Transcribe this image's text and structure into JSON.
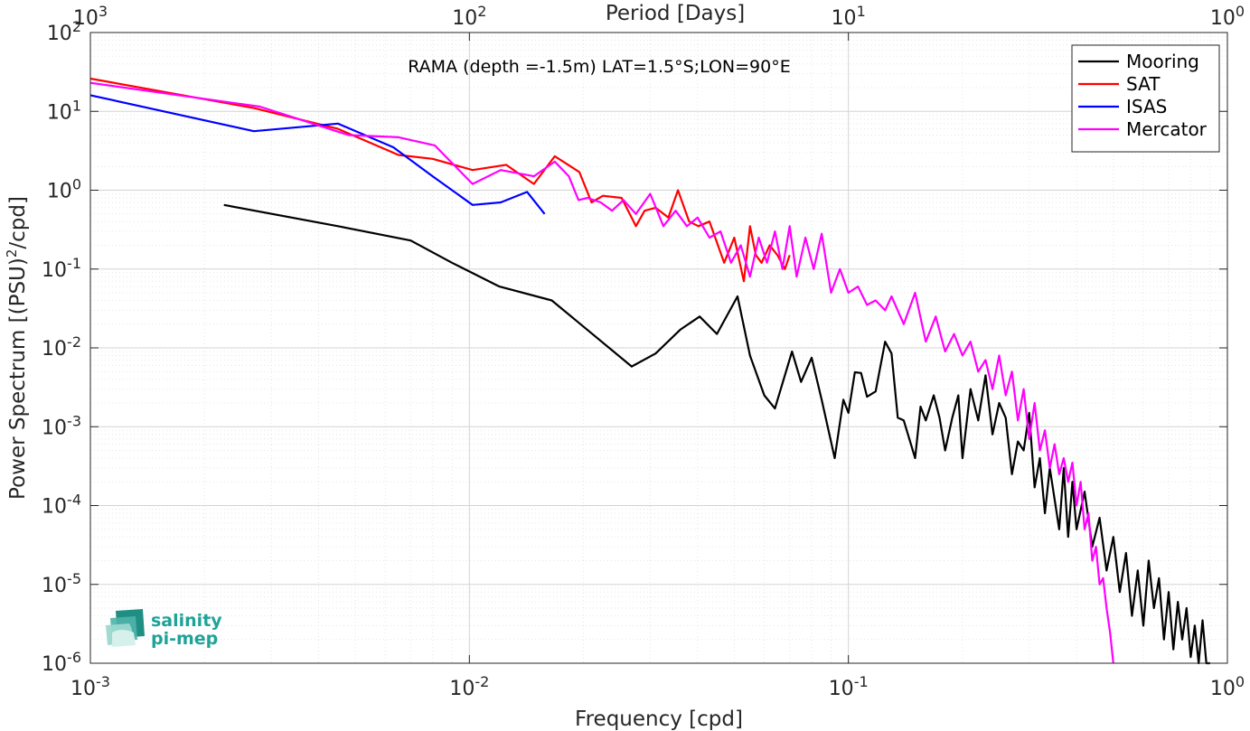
{
  "chart_data": {
    "type": "line",
    "title": "",
    "annotation": "RAMA (depth =-1.5m) LAT=1.5°S;LON=90°E",
    "xlabel": "Frequency [cpd]",
    "ylabel_main": "Power Spectrum [(PSU)",
    "ylabel_sup": "2",
    "ylabel_end": "/cpd]",
    "top_xlabel": "Period [Days]",
    "xscale": "log",
    "yscale": "log",
    "xlim": [
      0.001,
      1
    ],
    "ylim": [
      1e-06,
      100
    ],
    "grid": true,
    "legend_position": "top-right",
    "x_ticks": [
      {
        "value": 0.001,
        "base": "10",
        "exp": "-3"
      },
      {
        "value": 0.01,
        "base": "10",
        "exp": "-2"
      },
      {
        "value": 0.1,
        "base": "10",
        "exp": "-1"
      },
      {
        "value": 1,
        "base": "10",
        "exp": "0"
      }
    ],
    "top_ticks": [
      {
        "freq": 0.001,
        "base": "10",
        "exp": "3"
      },
      {
        "freq": 0.01,
        "base": "10",
        "exp": "2"
      },
      {
        "freq": 0.1,
        "base": "10",
        "exp": "1"
      },
      {
        "freq": 1,
        "base": "10",
        "exp": "0"
      }
    ],
    "y_ticks": [
      {
        "value": 1e-06,
        "base": "10",
        "exp": "-6"
      },
      {
        "value": 1e-05,
        "base": "10",
        "exp": "-5"
      },
      {
        "value": 0.0001,
        "base": "10",
        "exp": "-4"
      },
      {
        "value": 0.001,
        "base": "10",
        "exp": "-3"
      },
      {
        "value": 0.01,
        "base": "10",
        "exp": "-2"
      },
      {
        "value": 0.1,
        "base": "10",
        "exp": "-1"
      },
      {
        "value": 1,
        "base": "10",
        "exp": "0"
      },
      {
        "value": 10,
        "base": "10",
        "exp": "1"
      },
      {
        "value": 100,
        "base": "10",
        "exp": "2"
      }
    ],
    "series": [
      {
        "name": "Mooring",
        "color": "#000000",
        "x": [
          0.00225,
          0.0045,
          0.007,
          0.009,
          0.012,
          0.0165,
          0.0268,
          0.031,
          0.036,
          0.0405,
          0.045,
          0.051,
          0.055,
          0.06,
          0.064,
          0.071,
          0.075,
          0.08,
          0.085,
          0.092,
          0.097,
          0.1,
          0.104,
          0.108,
          0.112,
          0.118,
          0.125,
          0.13,
          0.135,
          0.14,
          0.15,
          0.155,
          0.16,
          0.168,
          0.174,
          0.18,
          0.188,
          0.195,
          0.2,
          0.21,
          0.22,
          0.23,
          0.24,
          0.25,
          0.26,
          0.27,
          0.28,
          0.29,
          0.3,
          0.31,
          0.32,
          0.33,
          0.34,
          0.35,
          0.36,
          0.37,
          0.38,
          0.39,
          0.4,
          0.42,
          0.44,
          0.46,
          0.48,
          0.5,
          0.52,
          0.54,
          0.56,
          0.58,
          0.6,
          0.62,
          0.64,
          0.66,
          0.68,
          0.7,
          0.72,
          0.74,
          0.76,
          0.78,
          0.8,
          0.82,
          0.84,
          0.86,
          0.88,
          0.9
        ],
        "values": [
          0.65,
          0.35,
          0.23,
          0.12,
          0.06,
          0.04,
          0.0058,
          0.0085,
          0.017,
          0.025,
          0.015,
          0.045,
          0.008,
          0.0025,
          0.0017,
          0.009,
          0.0037,
          0.0075,
          0.0022,
          0.0004,
          0.0022,
          0.0015,
          0.0049,
          0.0048,
          0.0024,
          0.0028,
          0.012,
          0.0085,
          0.0013,
          0.0012,
          0.0004,
          0.0018,
          0.0012,
          0.0025,
          0.0013,
          0.0005,
          0.0013,
          0.0025,
          0.0004,
          0.003,
          0.0012,
          0.0045,
          0.0008,
          0.002,
          0.0013,
          0.00025,
          0.00065,
          0.0005,
          0.0015,
          0.00017,
          0.0004,
          8e-05,
          0.0003,
          0.00012,
          5e-05,
          0.0003,
          4e-05,
          0.0002,
          5e-05,
          0.00015,
          3e-05,
          7e-05,
          1.5e-05,
          4e-05,
          8e-06,
          2.5e-05,
          4e-06,
          1.5e-05,
          3e-06,
          2e-05,
          5e-06,
          1.2e-05,
          2e-06,
          8e-06,
          1.5e-06,
          6e-06,
          2e-06,
          5e-06,
          1.2e-06,
          3e-06,
          1e-06,
          3.5e-06,
          1e-06,
          1e-06
        ]
      },
      {
        "name": "SAT",
        "color": "#ff0000",
        "x": [
          0.001,
          0.0027,
          0.0045,
          0.0065,
          0.008,
          0.0102,
          0.0125,
          0.0148,
          0.0168,
          0.0185,
          0.0195,
          0.021,
          0.0225,
          0.0252,
          0.0275,
          0.029,
          0.031,
          0.0335,
          0.0355,
          0.038,
          0.0402,
          0.043,
          0.047,
          0.05,
          0.053,
          0.055,
          0.057,
          0.059,
          0.062,
          0.065,
          0.068,
          0.07
        ],
        "values": [
          26,
          11,
          6,
          2.8,
          2.5,
          1.8,
          2.1,
          1.2,
          2.7,
          2.0,
          1.7,
          0.7,
          0.85,
          0.8,
          0.35,
          0.55,
          0.6,
          0.45,
          1.0,
          0.4,
          0.35,
          0.4,
          0.12,
          0.25,
          0.07,
          0.35,
          0.15,
          0.12,
          0.2,
          0.15,
          0.1,
          0.15
        ]
      },
      {
        "name": "ISAS",
        "color": "#0000ff",
        "x": [
          0.001,
          0.0027,
          0.0045,
          0.0063,
          0.008,
          0.0102,
          0.0121,
          0.0142,
          0.0158
        ],
        "values": [
          16,
          5.6,
          7,
          3.5,
          1.5,
          0.65,
          0.7,
          0.95,
          0.5
        ]
      },
      {
        "name": "Mercator",
        "color": "#ff00ff",
        "x": [
          0.001,
          0.0028,
          0.0048,
          0.0065,
          0.0081,
          0.0102,
          0.0121,
          0.0148,
          0.0168,
          0.0183,
          0.0194,
          0.0205,
          0.0222,
          0.0238,
          0.0255,
          0.0275,
          0.03,
          0.0325,
          0.035,
          0.0375,
          0.04,
          0.043,
          0.046,
          0.049,
          0.052,
          0.055,
          0.058,
          0.061,
          0.064,
          0.067,
          0.07,
          0.073,
          0.077,
          0.081,
          0.085,
          0.09,
          0.095,
          0.1,
          0.106,
          0.112,
          0.118,
          0.125,
          0.13,
          0.14,
          0.15,
          0.16,
          0.17,
          0.18,
          0.19,
          0.2,
          0.21,
          0.22,
          0.23,
          0.24,
          0.25,
          0.26,
          0.27,
          0.28,
          0.29,
          0.3,
          0.31,
          0.32,
          0.33,
          0.34,
          0.35,
          0.36,
          0.37,
          0.38,
          0.39,
          0.4,
          0.41,
          0.42,
          0.43,
          0.44,
          0.45,
          0.46,
          0.47,
          0.48,
          0.49,
          0.5
        ],
        "values": [
          23,
          11.5,
          5,
          4.7,
          3.7,
          1.2,
          1.8,
          1.5,
          2.3,
          1.5,
          0.75,
          0.8,
          0.7,
          0.55,
          0.75,
          0.5,
          0.9,
          0.35,
          0.55,
          0.35,
          0.45,
          0.25,
          0.3,
          0.12,
          0.2,
          0.08,
          0.25,
          0.12,
          0.3,
          0.1,
          0.35,
          0.08,
          0.25,
          0.1,
          0.28,
          0.05,
          0.1,
          0.05,
          0.06,
          0.035,
          0.04,
          0.03,
          0.045,
          0.02,
          0.05,
          0.012,
          0.025,
          0.009,
          0.015,
          0.008,
          0.012,
          0.005,
          0.007,
          0.003,
          0.008,
          0.0025,
          0.005,
          0.0012,
          0.003,
          0.0007,
          0.002,
          0.0005,
          0.0009,
          0.0003,
          0.0006,
          0.00025,
          0.0004,
          0.0002,
          0.00035,
          0.0001,
          0.0002,
          5e-05,
          8e-05,
          2e-05,
          3e-05,
          1e-05,
          1.2e-05,
          5e-06,
          2.5e-06,
          1e-06
        ]
      }
    ]
  },
  "logo": {
    "line1": "salinity",
    "line2": "pi-mep",
    "icon": "salinity-pi-mep-logo-icon"
  }
}
